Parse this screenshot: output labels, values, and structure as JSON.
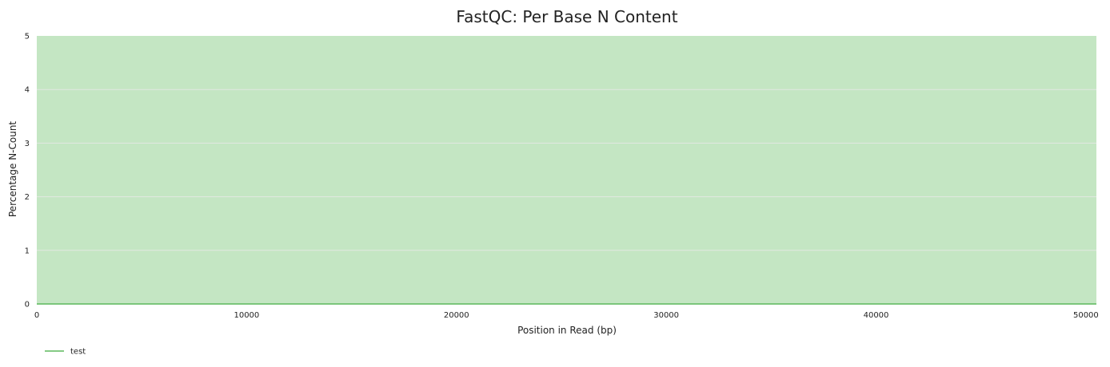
{
  "chart_data": {
    "type": "line",
    "title": "FastQC: Per Base N Content",
    "xlabel": "Position in Read (bp)",
    "ylabel": "Percentage N-Count",
    "xlim": [
      0,
      50500
    ],
    "ylim": [
      0,
      5
    ],
    "xticks": [
      0,
      10000,
      20000,
      30000,
      40000,
      50000
    ],
    "yticks": [
      0,
      1,
      2,
      3,
      4,
      5
    ],
    "grid": true,
    "background_band": {
      "from": 0,
      "to": 5,
      "color": "#c4e6c3"
    },
    "legend_placement": "bottom-left",
    "series": [
      {
        "name": "test",
        "color": "#5cb85c",
        "x": [
          0,
          50500
        ],
        "y": [
          0,
          0
        ]
      }
    ]
  }
}
